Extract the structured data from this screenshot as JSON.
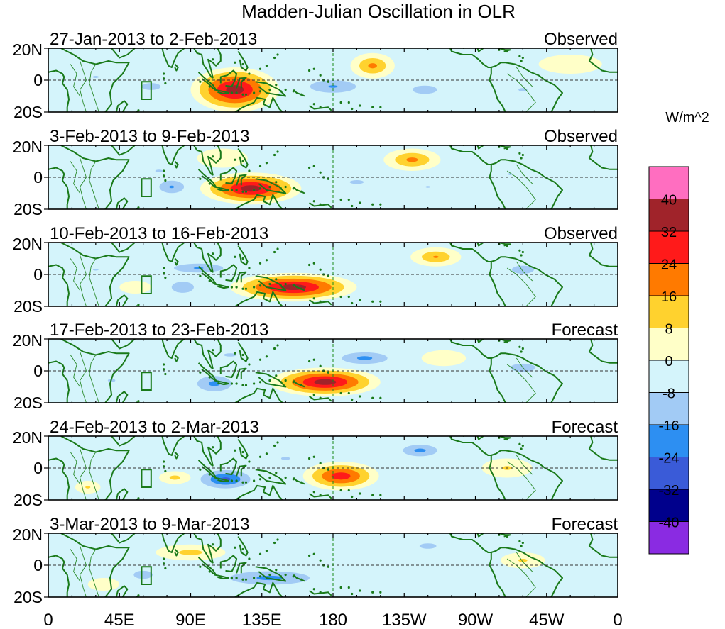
{
  "chart_data": {
    "type": "heatmap",
    "title": "Madden-Julian Oscillation in OLR",
    "units": "W/m^2",
    "x_ticks": [
      "0",
      "45E",
      "90E",
      "135E",
      "180",
      "135W",
      "90W",
      "45W",
      "0"
    ],
    "y_ticks": [
      "20N",
      "0",
      "20S"
    ],
    "xlim_deg": [
      0,
      360
    ],
    "ylim_deg": [
      -20,
      20
    ],
    "color_levels": [
      {
        "label": "",
        "color": "#ff6ec0"
      },
      {
        "label": "40",
        "color": "#a0232a"
      },
      {
        "label": "32",
        "color": "#ff1a1a"
      },
      {
        "label": "24",
        "color": "#ff7a00"
      },
      {
        "label": "16",
        "color": "#ffd22e"
      },
      {
        "label": "8",
        "color": "#ffffc8"
      },
      {
        "label": "0",
        "color": "#d4f4fb"
      },
      {
        "label": "-8",
        "color": "#a2cbf5"
      },
      {
        "label": "-16",
        "color": "#2d8ff2"
      },
      {
        "label": "-24",
        "color": "#3a5bd8"
      },
      {
        "label": "-32",
        "color": "#00008c"
      },
      {
        "label": "-40",
        "color": "#8a2be2"
      }
    ],
    "panels": [
      {
        "period": "27-Jan-2013 to 2-Feb-2013",
        "status": "Observed",
        "anomalies": [
          {
            "lon": 118,
            "lat": -6,
            "rlon": 28,
            "rlat": 14,
            "value": 40
          },
          {
            "lon": 205,
            "lat": 9,
            "rlon": 14,
            "rlat": 8,
            "value": 20
          },
          {
            "lon": 180,
            "lat": -4,
            "rlon": 26,
            "rlat": 7,
            "value": -18
          },
          {
            "lon": 238,
            "lat": -6,
            "rlon": 18,
            "rlat": 6,
            "value": -14
          },
          {
            "lon": 65,
            "lat": -4,
            "rlon": 14,
            "rlat": 5,
            "value": -14
          },
          {
            "lon": 300,
            "lat": -6,
            "rlon": 14,
            "rlat": 5,
            "value": -10
          },
          {
            "lon": 30,
            "lat": 2,
            "rlon": 18,
            "rlat": 6,
            "value": -9
          },
          {
            "lon": 330,
            "lat": 10,
            "rlon": 20,
            "rlat": 6,
            "value": 6
          }
        ]
      },
      {
        "period": "3-Feb-2013 to 9-Feb-2013",
        "status": "Observed",
        "anomalies": [
          {
            "lon": 128,
            "lat": -7,
            "rlon": 32,
            "rlat": 10,
            "value": 40
          },
          {
            "lon": 230,
            "lat": 11,
            "rlon": 18,
            "rlat": 7,
            "value": 20
          },
          {
            "lon": 78,
            "lat": -6,
            "rlon": 14,
            "rlat": 7,
            "value": -18
          },
          {
            "lon": 70,
            "lat": 4,
            "rlon": 12,
            "rlat": 4,
            "value": -10
          },
          {
            "lon": 195,
            "lat": -3,
            "rlon": 22,
            "rlat": 6,
            "value": -10
          },
          {
            "lon": 292,
            "lat": 2,
            "rlon": 12,
            "rlat": 6,
            "value": -9
          },
          {
            "lon": 240,
            "lat": -6,
            "rlon": 14,
            "rlat": 5,
            "value": -9
          },
          {
            "lon": 110,
            "lat": 12,
            "rlon": 16,
            "rlat": 6,
            "value": 6
          }
        ]
      },
      {
        "period": "10-Feb-2013 to 16-Feb-2013",
        "status": "Observed",
        "anomalies": [
          {
            "lon": 155,
            "lat": -8,
            "rlon": 40,
            "rlat": 9,
            "value": 40
          },
          {
            "lon": 245,
            "lat": 11,
            "rlon": 16,
            "rlat": 6,
            "value": 18
          },
          {
            "lon": 95,
            "lat": 4,
            "rlon": 28,
            "rlat": 5,
            "value": -18
          },
          {
            "lon": 85,
            "lat": -8,
            "rlon": 14,
            "rlat": 7,
            "value": -16
          },
          {
            "lon": 300,
            "lat": 3,
            "rlon": 14,
            "rlat": 5,
            "value": -16
          },
          {
            "lon": 30,
            "lat": 3,
            "rlon": 16,
            "rlat": 5,
            "value": -9
          },
          {
            "lon": 55,
            "lat": -8,
            "rlon": 10,
            "rlat": 4,
            "value": 6
          }
        ]
      },
      {
        "period": "17-Feb-2013 to 23-Feb-2013",
        "status": "Forecast",
        "anomalies": [
          {
            "lon": 175,
            "lat": -7,
            "rlon": 35,
            "rlat": 9,
            "value": 40
          },
          {
            "lon": 200,
            "lat": 8,
            "rlon": 24,
            "rlat": 6,
            "value": -20
          },
          {
            "lon": 105,
            "lat": -8,
            "rlon": 18,
            "rlat": 8,
            "value": -20
          },
          {
            "lon": 115,
            "lat": 10,
            "rlon": 20,
            "rlat": 5,
            "value": -10
          },
          {
            "lon": 40,
            "lat": -6,
            "rlon": 12,
            "rlat": 5,
            "value": -10
          },
          {
            "lon": 300,
            "lat": 2,
            "rlon": 16,
            "rlat": 5,
            "value": -16
          },
          {
            "lon": 250,
            "lat": 8,
            "rlon": 14,
            "rlat": 5,
            "value": 6
          }
        ]
      },
      {
        "period": "24-Feb-2013 to 2-Mar-2013",
        "status": "Forecast",
        "anomalies": [
          {
            "lon": 185,
            "lat": -5,
            "rlon": 24,
            "rlat": 9,
            "value": 32
          },
          {
            "lon": 235,
            "lat": 11,
            "rlon": 18,
            "rlat": 6,
            "value": -20
          },
          {
            "lon": 112,
            "lat": -7,
            "rlon": 22,
            "rlat": 8,
            "value": -28
          },
          {
            "lon": 150,
            "lat": 6,
            "rlon": 14,
            "rlat": 5,
            "value": -10
          },
          {
            "lon": 80,
            "lat": -6,
            "rlon": 10,
            "rlat": 4,
            "value": 12
          },
          {
            "lon": 290,
            "lat": 0,
            "rlon": 16,
            "rlat": 6,
            "value": 10
          },
          {
            "lon": 25,
            "lat": -12,
            "rlon": 8,
            "rlat": 4,
            "value": 10
          }
        ]
      },
      {
        "period": "3-Mar-2013 to 9-Mar-2013",
        "status": "Forecast",
        "anomalies": [
          {
            "lon": 140,
            "lat": -8,
            "rlon": 42,
            "rlat": 7,
            "value": -20
          },
          {
            "lon": 60,
            "lat": -6,
            "rlon": 12,
            "rlat": 5,
            "value": -16
          },
          {
            "lon": 240,
            "lat": 12,
            "rlon": 16,
            "rlat": 5,
            "value": -12
          },
          {
            "lon": 90,
            "lat": 8,
            "rlon": 22,
            "rlat": 5,
            "value": 12
          },
          {
            "lon": 300,
            "lat": 3,
            "rlon": 14,
            "rlat": 5,
            "value": 10
          },
          {
            "lon": 35,
            "lat": -12,
            "rlon": 10,
            "rlat": 4,
            "value": 8
          }
        ]
      }
    ]
  }
}
